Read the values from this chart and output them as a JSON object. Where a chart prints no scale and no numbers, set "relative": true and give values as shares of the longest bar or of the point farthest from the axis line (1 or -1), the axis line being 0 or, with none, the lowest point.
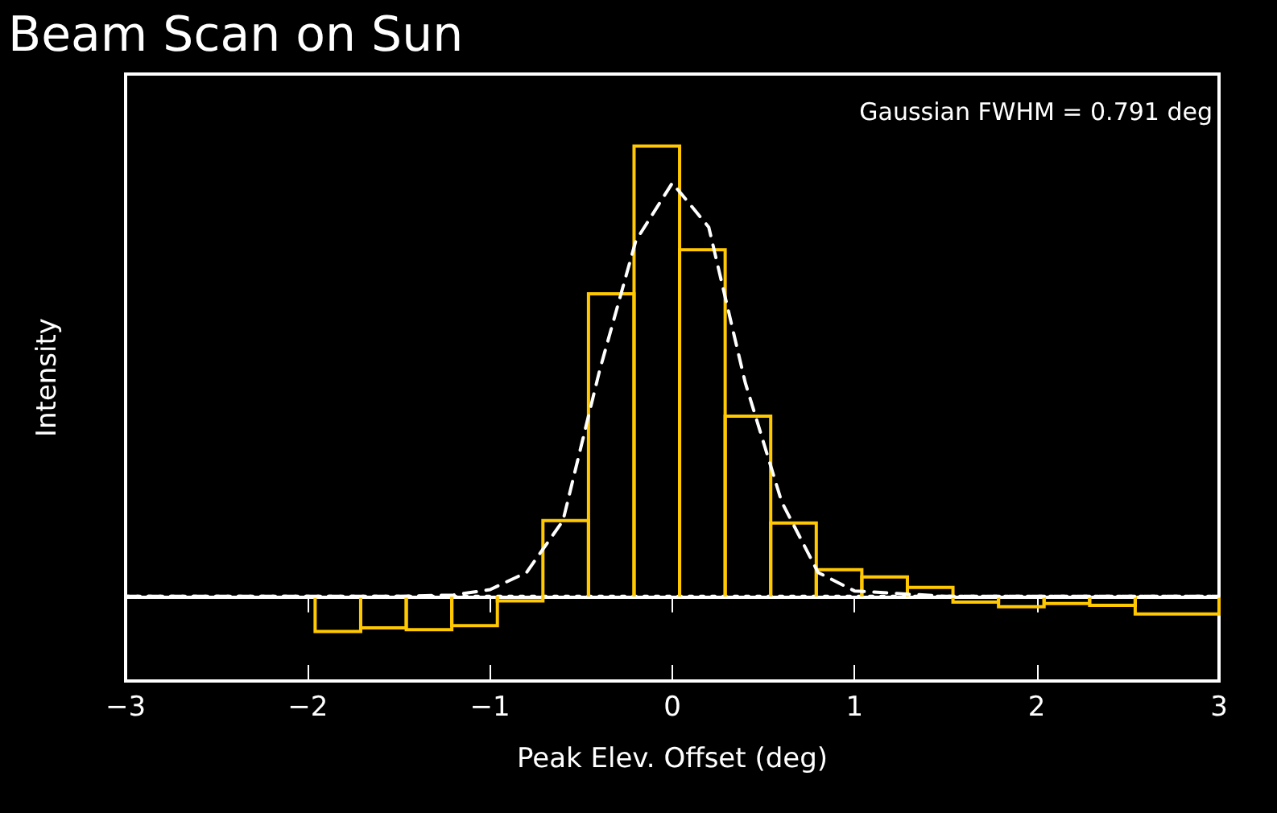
{
  "chart_data": {
    "type": "histogram",
    "title": "Beam Scan on Sun",
    "xlabel": "Peak Elev. Offset (deg)",
    "ylabel": "Intensity",
    "relative": true,
    "annotations": [
      "Gaussian FWHM = 0.791 deg"
    ],
    "bins": [
      -1.96,
      -1.71,
      -1.46,
      -1.21,
      -0.96,
      -0.71,
      -0.46,
      -0.21,
      0.04,
      0.29,
      0.54,
      0.79,
      1.04,
      1.29,
      1.54,
      1.79,
      2.04,
      2.29,
      2.54,
      3
    ],
    "values": [
      -0.078,
      -0.07,
      -0.074,
      -0.065,
      -0.01,
      0.168,
      0.672,
      1.0,
      0.77,
      0.4,
      0.163,
      0.059,
      0.043,
      0.02,
      -0.013,
      -0.023,
      -0.016,
      -0.02,
      -0.039
    ],
    "color": "#ffc800",
    "series": [
      {
        "type": "line",
        "color": "#ffffff",
        "line_style": "dashed",
        "marker": "none",
        "x": [
          -3,
          -1.5,
          -1.2,
          -1,
          -0.8,
          -0.6,
          -0.4,
          -0.2,
          0,
          0.2,
          0.4,
          0.6,
          0.8,
          1,
          1.5,
          3
        ],
        "values": [
          0,
          0,
          0.003,
          0.015,
          0.053,
          0.168,
          0.5,
          0.79,
          0.918,
          0.82,
          0.475,
          0.21,
          0.053,
          0.012,
          0,
          0
        ]
      }
    ],
    "ref_lines": [
      {
        "axis": "y",
        "value": 0,
        "color": "#ffffff",
        "line_style": "dotted"
      }
    ],
    "xlim": [
      -3,
      3
    ],
    "xticks": [
      -3,
      -2,
      -1,
      0,
      1,
      2,
      3
    ],
    "grid": false
  }
}
